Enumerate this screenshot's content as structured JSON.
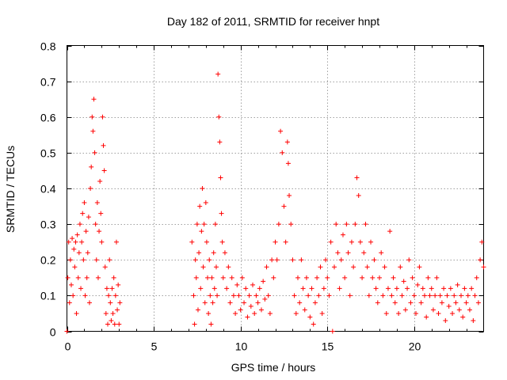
{
  "chart_data": {
    "type": "scatter",
    "title": "Day 182 of 2011, SRMTID for receiver hnpt",
    "xlabel": "GPS time / hours",
    "ylabel": "SRMTID / TECUs",
    "xlim": [
      0,
      24
    ],
    "ylim": [
      0,
      0.8
    ],
    "xticks": [
      0,
      5,
      10,
      15,
      20
    ],
    "xtick_labels": [
      "0",
      "5",
      "10",
      "15",
      "20"
    ],
    "yticks": [
      0,
      0.1,
      0.2,
      0.3,
      0.4,
      0.5,
      0.6,
      0.7,
      0.8
    ],
    "ytick_labels": [
      "0",
      "0.1",
      "0.2",
      "0.3",
      "0.4",
      "0.5",
      "0.6",
      "0.7",
      "0.8"
    ],
    "grid": true,
    "marker": "+",
    "series": [
      {
        "name": "SRMTID",
        "color": "#ff0000",
        "points": [
          [
            0.0,
            0.0
          ],
          [
            0.05,
            0.15
          ],
          [
            0.1,
            0.25
          ],
          [
            0.15,
            0.08
          ],
          [
            0.2,
            0.2
          ],
          [
            0.25,
            0.13
          ],
          [
            0.3,
            0.26
          ],
          [
            0.35,
            0.1
          ],
          [
            0.4,
            0.23
          ],
          [
            0.45,
            0.18
          ],
          [
            0.5,
            0.25
          ],
          [
            0.55,
            0.05
          ],
          [
            0.6,
            0.27
          ],
          [
            0.65,
            0.15
          ],
          [
            0.7,
            0.22
          ],
          [
            0.75,
            0.3
          ],
          [
            0.8,
            0.12
          ],
          [
            0.85,
            0.25
          ],
          [
            0.9,
            0.33
          ],
          [
            0.95,
            0.2
          ],
          [
            1.0,
            0.36
          ],
          [
            1.05,
            0.1
          ],
          [
            1.1,
            0.28
          ],
          [
            1.15,
            0.15
          ],
          [
            1.2,
            0.22
          ],
          [
            1.25,
            0.32
          ],
          [
            1.3,
            0.08
          ],
          [
            1.35,
            0.4
          ],
          [
            1.4,
            0.46
          ],
          [
            1.45,
            0.6
          ],
          [
            1.5,
            0.56
          ],
          [
            1.55,
            0.65
          ],
          [
            1.6,
            0.5
          ],
          [
            1.65,
            0.3
          ],
          [
            1.7,
            0.2
          ],
          [
            1.75,
            0.36
          ],
          [
            1.8,
            0.15
          ],
          [
            1.85,
            0.28
          ],
          [
            1.9,
            0.42
          ],
          [
            1.95,
            0.33
          ],
          [
            2.0,
            0.25
          ],
          [
            2.05,
            0.6
          ],
          [
            2.1,
            0.52
          ],
          [
            2.15,
            0.45
          ],
          [
            2.2,
            0.18
          ],
          [
            2.25,
            0.05
          ],
          [
            2.3,
            0.12
          ],
          [
            2.35,
            0.02
          ],
          [
            2.4,
            0.1
          ],
          [
            2.45,
            0.2
          ],
          [
            2.5,
            0.08
          ],
          [
            2.55,
            0.03
          ],
          [
            2.6,
            0.12
          ],
          [
            2.65,
            0.05
          ],
          [
            2.7,
            0.15
          ],
          [
            2.75,
            0.02
          ],
          [
            2.8,
            0.1
          ],
          [
            2.85,
            0.25
          ],
          [
            2.9,
            0.06
          ],
          [
            2.95,
            0.13
          ],
          [
            3.0,
            0.02
          ],
          [
            3.05,
            0.08
          ],
          [
            7.2,
            0.25
          ],
          [
            7.3,
            0.1
          ],
          [
            7.35,
            0.02
          ],
          [
            7.4,
            0.2
          ],
          [
            7.45,
            0.15
          ],
          [
            7.5,
            0.3
          ],
          [
            7.55,
            0.06
          ],
          [
            7.6,
            0.22
          ],
          [
            7.65,
            0.35
          ],
          [
            7.7,
            0.12
          ],
          [
            7.75,
            0.28
          ],
          [
            7.8,
            0.4
          ],
          [
            7.85,
            0.18
          ],
          [
            7.9,
            0.3
          ],
          [
            7.95,
            0.08
          ],
          [
            8.0,
            0.36
          ],
          [
            8.05,
            0.25
          ],
          [
            8.1,
            0.15
          ],
          [
            8.15,
            0.05
          ],
          [
            8.2,
            0.2
          ],
          [
            8.25,
            0.1
          ],
          [
            8.3,
            0.02
          ],
          [
            8.35,
            0.15
          ],
          [
            8.4,
            0.08
          ],
          [
            8.45,
            0.22
          ],
          [
            8.5,
            0.12
          ],
          [
            8.55,
            0.3
          ],
          [
            8.6,
            0.18
          ],
          [
            8.65,
            0.1
          ],
          [
            8.7,
            0.72
          ],
          [
            8.75,
            0.6
          ],
          [
            8.8,
            0.53
          ],
          [
            8.85,
            0.43
          ],
          [
            8.9,
            0.33
          ],
          [
            8.95,
            0.25
          ],
          [
            9.0,
            0.15
          ],
          [
            9.1,
            0.22
          ],
          [
            9.2,
            0.12
          ],
          [
            9.3,
            0.18
          ],
          [
            9.4,
            0.08
          ],
          [
            9.5,
            0.15
          ],
          [
            9.6,
            0.1
          ],
          [
            9.7,
            0.05
          ],
          [
            9.8,
            0.13
          ],
          [
            9.9,
            0.1
          ],
          [
            10.0,
            0.06
          ],
          [
            10.1,
            0.15
          ],
          [
            10.2,
            0.08
          ],
          [
            10.3,
            0.12
          ],
          [
            10.4,
            0.04
          ],
          [
            10.5,
            0.1
          ],
          [
            10.6,
            0.07
          ],
          [
            10.7,
            0.13
          ],
          [
            10.8,
            0.05
          ],
          [
            10.9,
            0.1
          ],
          [
            11.0,
            0.08
          ],
          [
            11.1,
            0.12
          ],
          [
            11.2,
            0.06
          ],
          [
            11.3,
            0.14
          ],
          [
            11.4,
            0.09
          ],
          [
            11.5,
            0.18
          ],
          [
            11.6,
            0.1
          ],
          [
            11.7,
            0.05
          ],
          [
            11.8,
            0.2
          ],
          [
            11.9,
            0.15
          ],
          [
            12.0,
            0.25
          ],
          [
            12.1,
            0.2
          ],
          [
            12.2,
            0.3
          ],
          [
            12.3,
            0.56
          ],
          [
            12.4,
            0.5
          ],
          [
            12.5,
            0.35
          ],
          [
            12.6,
            0.25
          ],
          [
            12.7,
            0.53
          ],
          [
            12.75,
            0.47
          ],
          [
            12.8,
            0.38
          ],
          [
            12.9,
            0.3
          ],
          [
            13.0,
            0.2
          ],
          [
            13.1,
            0.1
          ],
          [
            13.2,
            0.05
          ],
          [
            13.3,
            0.15
          ],
          [
            13.4,
            0.08
          ],
          [
            13.5,
            0.2
          ],
          [
            13.6,
            0.12
          ],
          [
            13.7,
            0.06
          ],
          [
            13.8,
            0.15
          ],
          [
            13.9,
            0.1
          ],
          [
            14.0,
            0.04
          ],
          [
            14.1,
            0.12
          ],
          [
            14.2,
            0.02
          ],
          [
            14.3,
            0.08
          ],
          [
            14.4,
            0.15
          ],
          [
            14.5,
            0.1
          ],
          [
            14.6,
            0.18
          ],
          [
            14.7,
            0.05
          ],
          [
            14.8,
            0.12
          ],
          [
            14.9,
            0.2
          ],
          [
            15.0,
            0.15
          ],
          [
            15.1,
            0.1
          ],
          [
            15.2,
            0.25
          ],
          [
            15.3,
            0.0
          ],
          [
            15.4,
            0.18
          ],
          [
            15.5,
            0.3
          ],
          [
            15.6,
            0.22
          ],
          [
            15.7,
            0.12
          ],
          [
            15.8,
            0.2
          ],
          [
            15.9,
            0.27
          ],
          [
            16.0,
            0.15
          ],
          [
            16.1,
            0.3
          ],
          [
            16.2,
            0.22
          ],
          [
            16.3,
            0.1
          ],
          [
            16.4,
            0.25
          ],
          [
            16.5,
            0.18
          ],
          [
            16.6,
            0.3
          ],
          [
            16.7,
            0.43
          ],
          [
            16.8,
            0.38
          ],
          [
            16.9,
            0.25
          ],
          [
            17.0,
            0.15
          ],
          [
            17.1,
            0.22
          ],
          [
            17.2,
            0.3
          ],
          [
            17.3,
            0.18
          ],
          [
            17.4,
            0.1
          ],
          [
            17.5,
            0.25
          ],
          [
            17.6,
            0.15
          ],
          [
            17.7,
            0.2
          ],
          [
            17.8,
            0.12
          ],
          [
            17.9,
            0.08
          ],
          [
            18.0,
            0.15
          ],
          [
            18.1,
            0.22
          ],
          [
            18.2,
            0.1
          ],
          [
            18.3,
            0.18
          ],
          [
            18.4,
            0.05
          ],
          [
            18.5,
            0.12
          ],
          [
            18.6,
            0.28
          ],
          [
            18.7,
            0.1
          ],
          [
            18.8,
            0.15
          ],
          [
            18.9,
            0.08
          ],
          [
            19.0,
            0.12
          ],
          [
            19.1,
            0.05
          ],
          [
            19.2,
            0.18
          ],
          [
            19.3,
            0.1
          ],
          [
            19.4,
            0.14
          ],
          [
            19.5,
            0.06
          ],
          [
            19.6,
            0.12
          ],
          [
            19.7,
            0.2
          ],
          [
            19.8,
            0.08
          ],
          [
            19.9,
            0.15
          ],
          [
            20.0,
            0.1
          ],
          [
            20.1,
            0.05
          ],
          [
            20.2,
            0.13
          ],
          [
            20.3,
            0.18
          ],
          [
            20.4,
            0.08
          ],
          [
            20.5,
            0.12
          ],
          [
            20.6,
            0.1
          ],
          [
            20.7,
            0.04
          ],
          [
            20.8,
            0.15
          ],
          [
            20.9,
            0.1
          ],
          [
            21.0,
            0.12
          ],
          [
            21.1,
            0.06
          ],
          [
            21.2,
            0.1
          ],
          [
            21.3,
            0.15
          ],
          [
            21.4,
            0.05
          ],
          [
            21.5,
            0.1
          ],
          [
            21.6,
            0.08
          ],
          [
            21.7,
            0.12
          ],
          [
            21.8,
            0.03
          ],
          [
            21.9,
            0.1
          ],
          [
            22.0,
            0.07
          ],
          [
            22.1,
            0.12
          ],
          [
            22.2,
            0.05
          ],
          [
            22.3,
            0.1
          ],
          [
            22.4,
            0.08
          ],
          [
            22.5,
            0.13
          ],
          [
            22.6,
            0.06
          ],
          [
            22.7,
            0.1
          ],
          [
            22.8,
            0.04
          ],
          [
            22.9,
            0.12
          ],
          [
            23.0,
            0.08
          ],
          [
            23.1,
            0.1
          ],
          [
            23.2,
            0.06
          ],
          [
            23.3,
            0.12
          ],
          [
            23.4,
            0.03
          ],
          [
            23.5,
            0.1
          ],
          [
            23.6,
            0.15
          ],
          [
            23.7,
            0.08
          ],
          [
            23.8,
            0.2
          ],
          [
            23.9,
            0.25
          ],
          [
            24.0,
            0.18
          ]
        ]
      }
    ]
  }
}
